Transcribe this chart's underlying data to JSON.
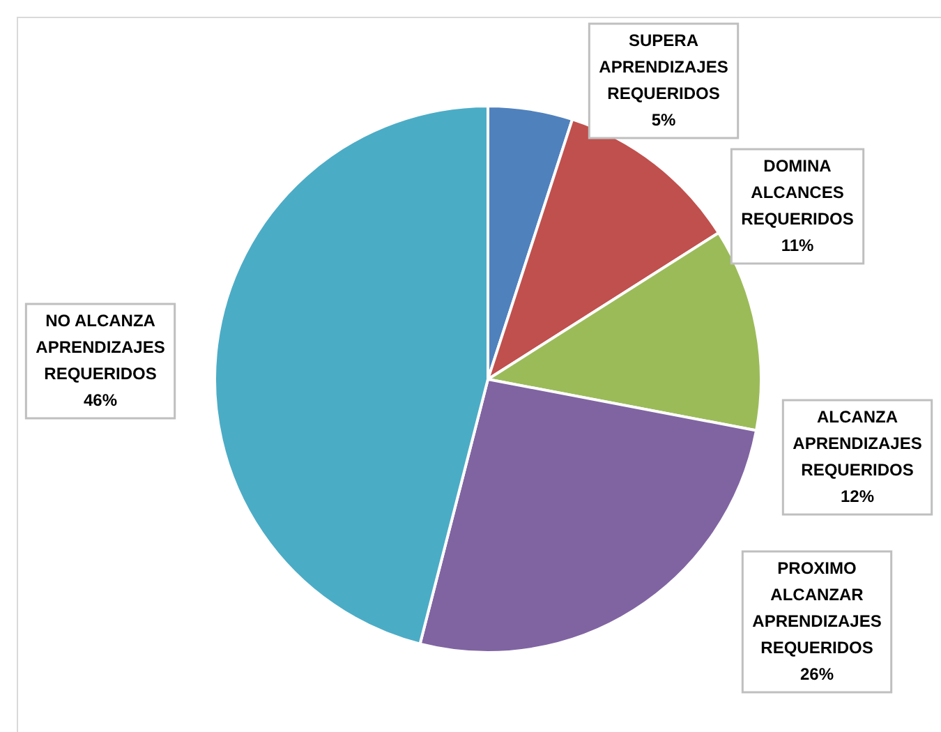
{
  "chart_data": {
    "type": "pie",
    "categories": [
      "SUPERA APRENDIZAJES REQUERIDOS",
      "DOMINA ALCANCES REQUERIDOS",
      "ALCANZA APRENDIZAJES REQUERIDOS",
      "PROXIMO ALCANZAR APRENDIZAJES REQUERIDOS",
      "NO ALCANZA APRENDIZAJES REQUERIDOS"
    ],
    "values": [
      5,
      11,
      12,
      26,
      46
    ],
    "colors": [
      "#4f81bd",
      "#c0504d",
      "#9bbb59",
      "#8064a2",
      "#4bacc6"
    ],
    "value_labels": [
      "5%",
      "11%",
      "12%",
      "26%",
      "46%"
    ],
    "legend": false
  }
}
